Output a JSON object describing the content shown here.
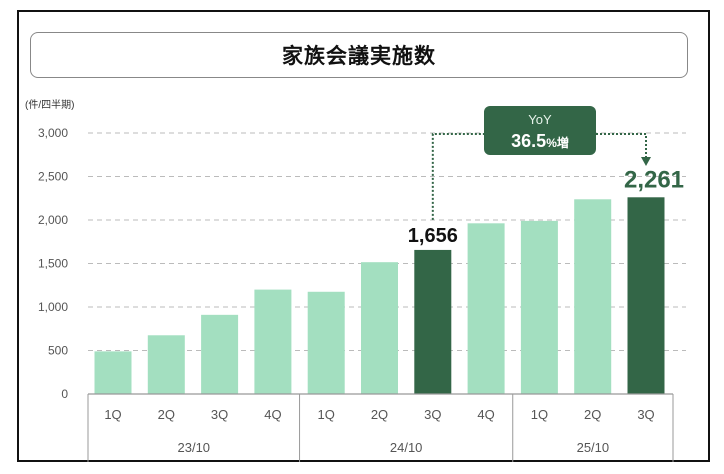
{
  "chart_data": {
    "type": "bar",
    "title": "家族会議実施数",
    "ylabel": "(件/四半期)",
    "ylim": [
      0,
      3000
    ],
    "yticks": [
      0,
      500,
      1000,
      1500,
      2000,
      2500,
      3000
    ],
    "ytick_labels": [
      "0",
      "500",
      "1,000",
      "1,500",
      "2,000",
      "2,500",
      "3,000"
    ],
    "grid": true,
    "categories": [
      "1Q",
      "2Q",
      "3Q",
      "4Q",
      "1Q",
      "2Q",
      "3Q",
      "4Q",
      "1Q",
      "2Q",
      "3Q"
    ],
    "groups": [
      {
        "label": "23/10",
        "count": 4
      },
      {
        "label": "24/10",
        "count": 4
      },
      {
        "label": "25/10",
        "count": 3
      }
    ],
    "values": [
      490,
      675,
      910,
      1200,
      1175,
      1515,
      1656,
      1962,
      1990,
      2238,
      2261
    ],
    "highlight": [
      false,
      false,
      false,
      false,
      false,
      false,
      true,
      false,
      false,
      false,
      true
    ],
    "data_labels": {
      "6": "1,656",
      "10": "2,261"
    },
    "annotation": {
      "line1": "YoY",
      "line2": "36.5",
      "suffix": "%増",
      "from": 6,
      "to": 10
    },
    "colors": {
      "bar": "#a3dfc0",
      "highlight": "#336647",
      "label_1656": "#111111",
      "label_2261": "#336647"
    }
  }
}
